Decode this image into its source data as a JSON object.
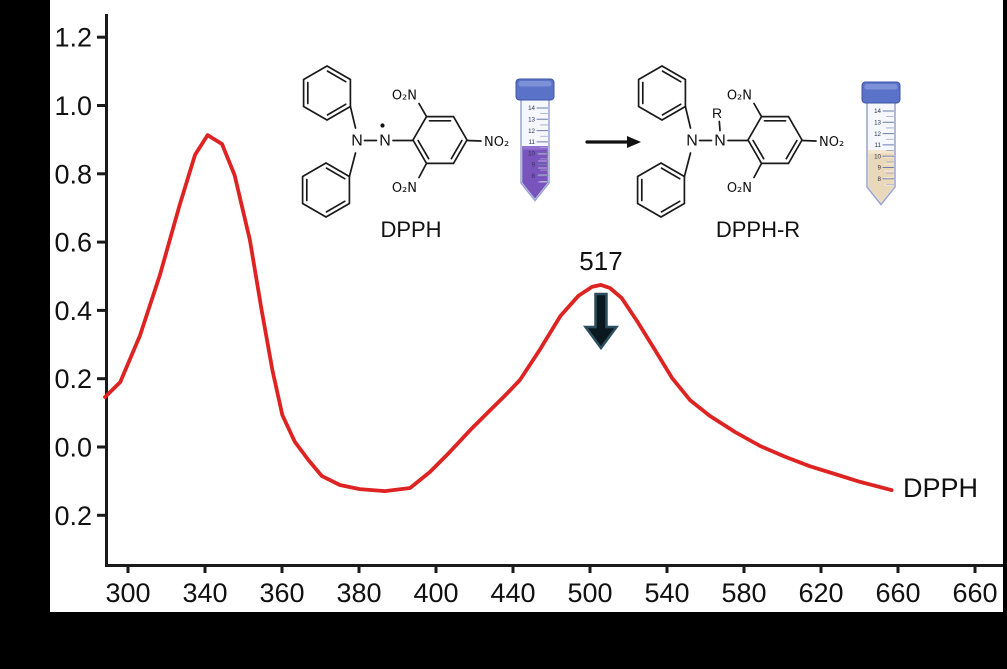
{
  "figure": {
    "description": "UV-Vis absorption spectrum of DPPH with radical scavenging reaction scheme inset",
    "curve_end_label": "DPPH",
    "peak_annotation": "517"
  },
  "chart_data": {
    "type": "line",
    "title": "",
    "xlabel": "",
    "ylabel": "",
    "grid": false,
    "x_tick_labels": [
      "300",
      "340",
      "360",
      "380",
      "400",
      "440",
      "500",
      "540",
      "580",
      "620",
      "660",
      "660"
    ],
    "y_ticks": [
      {
        "label": "1.2",
        "value": 1.2
      },
      {
        "label": "1.0",
        "value": 1.0
      },
      {
        "label": "0.8",
        "value": 0.8
      },
      {
        "label": "0.6",
        "value": 0.6
      },
      {
        "label": "0.4",
        "value": 0.4
      },
      {
        "label": "0.2",
        "value": 0.2
      },
      {
        "label": "0.0",
        "value": 0.0
      },
      {
        "label": "0.2",
        "value": -0.2
      }
    ],
    "series": [
      {
        "name": "DPPH",
        "color": "#de2422",
        "points_x_fraction_absorbance": [
          [
            0.0,
            0.146
          ],
          [
            0.017,
            0.19
          ],
          [
            0.039,
            0.327
          ],
          [
            0.061,
            0.503
          ],
          [
            0.083,
            0.708
          ],
          [
            0.1,
            0.854
          ],
          [
            0.114,
            0.912
          ],
          [
            0.13,
            0.886
          ],
          [
            0.144,
            0.795
          ],
          [
            0.161,
            0.605
          ],
          [
            0.174,
            0.401
          ],
          [
            0.186,
            0.225
          ],
          [
            0.197,
            0.094
          ],
          [
            0.211,
            0.015
          ],
          [
            0.226,
            -0.038
          ],
          [
            0.241,
            -0.085
          ],
          [
            0.261,
            -0.111
          ],
          [
            0.283,
            -0.123
          ],
          [
            0.311,
            -0.129
          ],
          [
            0.339,
            -0.12
          ],
          [
            0.361,
            -0.073
          ],
          [
            0.383,
            -0.015
          ],
          [
            0.406,
            0.05
          ],
          [
            0.428,
            0.108
          ],
          [
            0.444,
            0.149
          ],
          [
            0.461,
            0.196
          ],
          [
            0.483,
            0.284
          ],
          [
            0.506,
            0.383
          ],
          [
            0.526,
            0.442
          ],
          [
            0.541,
            0.468
          ],
          [
            0.551,
            0.474
          ],
          [
            0.561,
            0.465
          ],
          [
            0.574,
            0.436
          ],
          [
            0.592,
            0.365
          ],
          [
            0.611,
            0.284
          ],
          [
            0.63,
            0.202
          ],
          [
            0.65,
            0.137
          ],
          [
            0.672,
            0.091
          ],
          [
            0.7,
            0.044
          ],
          [
            0.728,
            0.003
          ],
          [
            0.756,
            -0.029
          ],
          [
            0.783,
            -0.056
          ],
          [
            0.811,
            -0.079
          ],
          [
            0.839,
            -0.102
          ],
          [
            0.874,
            -0.126
          ]
        ]
      }
    ],
    "annotations": {
      "peak_label": "517",
      "peak_x_fraction": 0.551,
      "peak_absorbance": 0.474,
      "first_peak_absorbance": 0.912
    }
  },
  "inset": {
    "reaction_arrow": "→",
    "left_molecule": {
      "label": "DPPH",
      "n1": "N",
      "n2": "N",
      "nitro_top": "O₂N",
      "nitro_right": "NO₂",
      "nitro_bottom": "O₂N"
    },
    "right_molecule": {
      "label": "DPPH-R",
      "n1": "N",
      "n2": "N",
      "r_group": "R",
      "nitro_top": "O₂N",
      "nitro_right": "NO₂",
      "nitro_bottom": "O₂N"
    },
    "tubes": {
      "scale_numbers": [
        "14",
        "13",
        "12",
        "11",
        "10",
        "9",
        "8"
      ],
      "left_liquid_color": "#7a54bd",
      "left_liquid_surface": "#9372cf",
      "right_liquid_color": "#ead8ba",
      "right_liquid_surface": "#f2e6cf",
      "cap_color": "#5a73c9",
      "cap_highlight": "#8296da",
      "cap_stroke": "#3d54a6",
      "body_stroke": "#97a3cc",
      "body_fill": "#f5f7fd"
    }
  },
  "colors": {
    "background": "#000000",
    "panel": "#ffffff",
    "axis": "#1a1a1a",
    "curve": "#de2422",
    "arrow_fill": "#0c1820",
    "arrow_stroke": "#2b4f5f",
    "bond": "#1a1a1a"
  }
}
